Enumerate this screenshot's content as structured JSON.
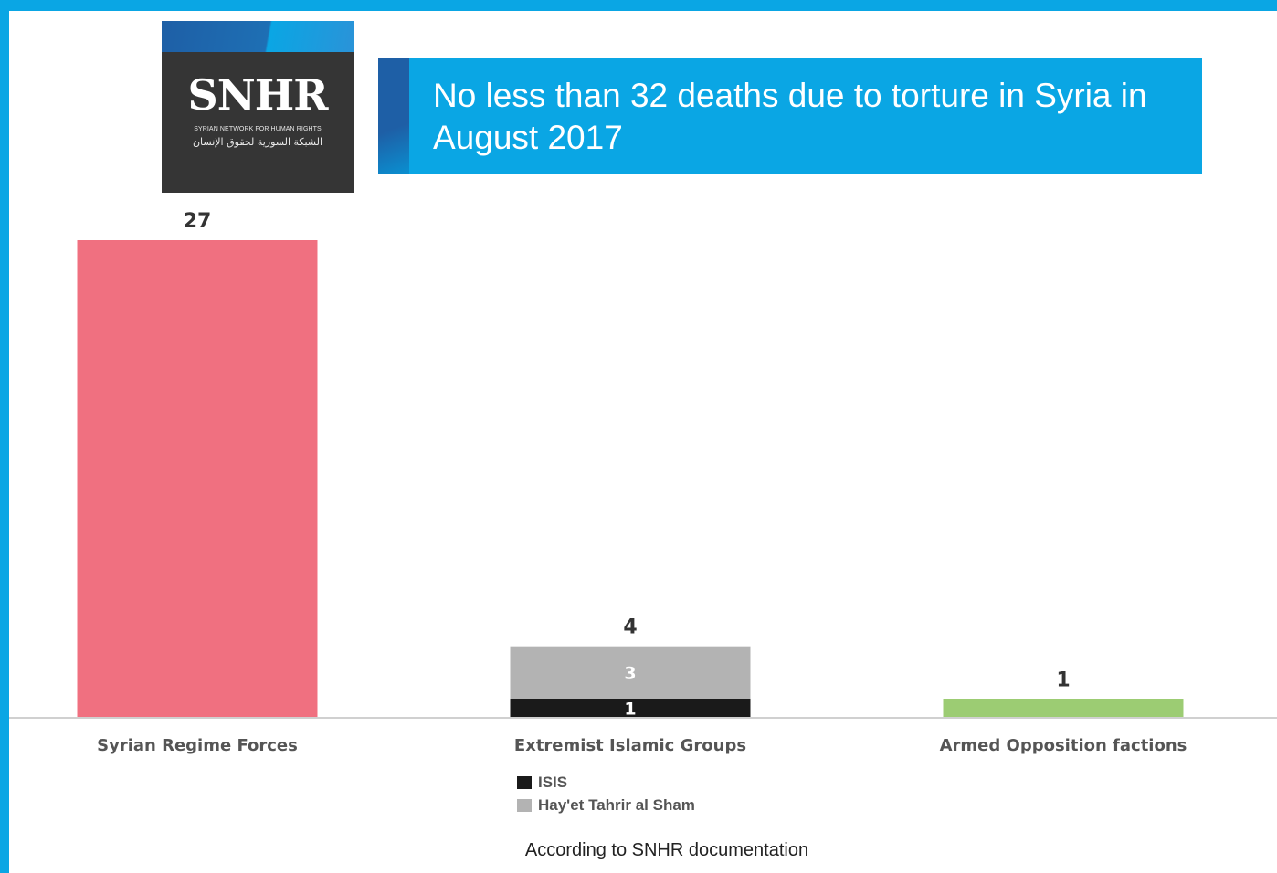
{
  "logo": {
    "wordmark": "SNHR",
    "subtitle": "SYRIAN NETWORK FOR HUMAN RIGHTS",
    "arabic": "الشبكة السورية لحقوق الإنسان"
  },
  "title": "No less than 32 deaths due to torture in Syria in August 2017",
  "source": "According to SNHR documentation",
  "colors": {
    "frame": "#0aa6e4",
    "title_bg": "#0aa6e4",
    "syrian_regime": "#f07080",
    "isis": "#1a1a1a",
    "hayet_tahrir": "#b3b3b3",
    "armed_opposition": "#9ccc73"
  },
  "chart_data": {
    "type": "bar",
    "stacked": true,
    "title": "No less than 32 deaths due to torture in Syria in August 2017",
    "categories": [
      "Syrian Regime Forces",
      "Extremist Islamic Groups",
      "Armed Opposition factions"
    ],
    "totals": [
      27,
      4,
      1
    ],
    "series": [
      {
        "name": "",
        "values": [
          27,
          0,
          0
        ],
        "color": "#f07080"
      },
      {
        "name": "ISIS",
        "values": [
          0,
          1,
          0
        ],
        "color": "#1a1a1a"
      },
      {
        "name": "Hay'et Tahrir al Sham",
        "values": [
          0,
          3,
          0
        ],
        "color": "#b3b3b3"
      },
      {
        "name": "",
        "values": [
          0,
          0,
          1
        ],
        "color": "#9ccc73"
      }
    ],
    "ylim": [
      0,
      27
    ],
    "grid": false,
    "legend": "bottom-center"
  }
}
